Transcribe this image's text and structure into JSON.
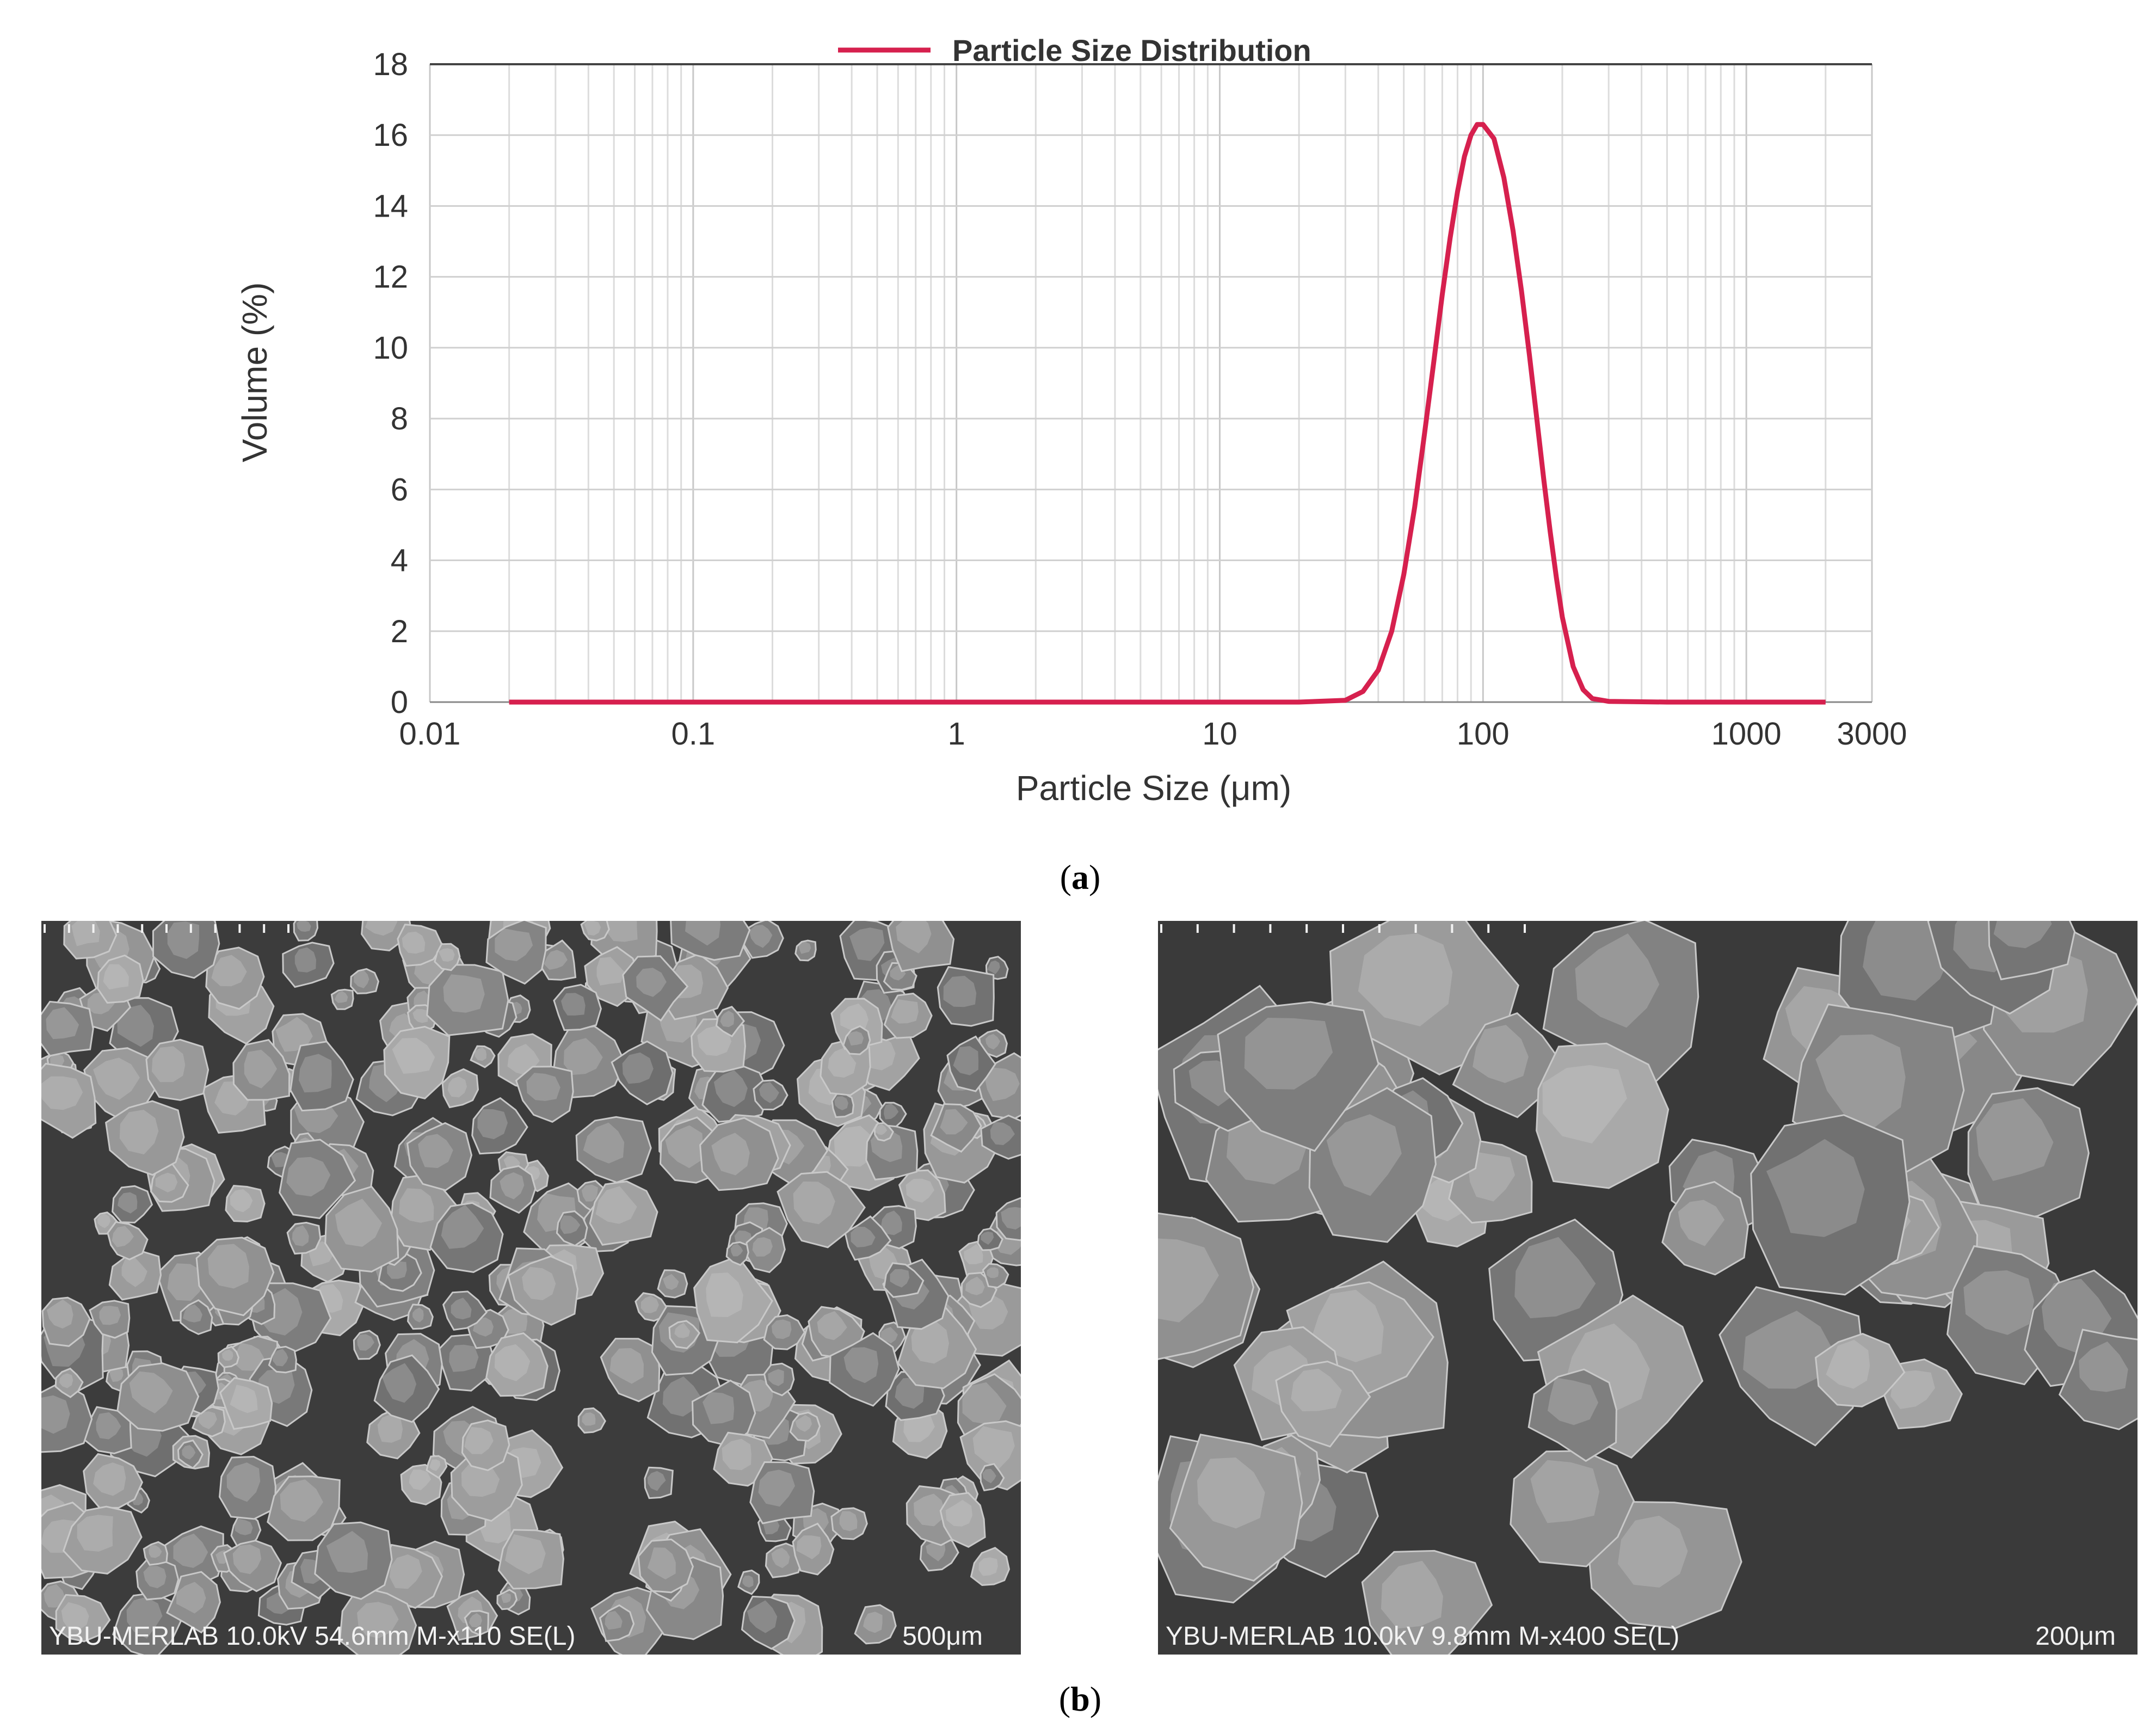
{
  "chart_data": {
    "type": "line",
    "title": "",
    "xlabel": "Particle Size (μm)",
    "ylabel": "Volume (%)",
    "x_scale": "log",
    "xlim": [
      0.01,
      3000
    ],
    "ylim": [
      0,
      18
    ],
    "xticks": [
      0.01,
      0.1,
      1,
      10,
      100,
      1000,
      3000
    ],
    "xtick_labels": [
      "0.01",
      "0.1",
      "1",
      "10",
      "100",
      "1000",
      "3000"
    ],
    "yticks": [
      0,
      2,
      4,
      6,
      8,
      10,
      12,
      14,
      16,
      18
    ],
    "ytick_labels": [
      "0",
      "2",
      "4",
      "6",
      "8",
      "10",
      "12",
      "14",
      "16",
      "18"
    ],
    "grid": true,
    "legend": "top-center",
    "series": [
      {
        "name": "Particle Size Distribution",
        "color": "#d6204e",
        "x": [
          0.02,
          0.05,
          0.1,
          0.5,
          1,
          5,
          10,
          20,
          30,
          35,
          40,
          45,
          50,
          55,
          60,
          65,
          70,
          75,
          80,
          85,
          90,
          95,
          100,
          110,
          120,
          130,
          140,
          150,
          160,
          170,
          180,
          190,
          200,
          220,
          240,
          260,
          300,
          500,
          1000,
          2000
        ],
        "y": [
          0,
          0,
          0,
          0,
          0,
          0,
          0,
          0,
          0.05,
          0.3,
          0.9,
          2.0,
          3.6,
          5.5,
          7.6,
          9.6,
          11.5,
          13.1,
          14.4,
          15.4,
          16.0,
          16.3,
          16.3,
          15.9,
          14.8,
          13.3,
          11.6,
          9.8,
          8.0,
          6.3,
          4.8,
          3.5,
          2.4,
          1.0,
          0.35,
          0.1,
          0.02,
          0,
          0,
          0
        ]
      }
    ]
  },
  "captions": {
    "a": "a",
    "b": "b"
  },
  "sem_left": {
    "info": "YBU-MERLAB 10.0kV 54.6mm M-x110 SE(L)",
    "scale": "500μm",
    "background": "#3c3c3c",
    "particle_color": "#8e8e8e"
  },
  "sem_right": {
    "info": "YBU-MERLAB 10.0kV 9.8mm M-x400 SE(L)",
    "scale": "200μm",
    "background": "#3a3a3a",
    "particle_color": "#8a8a8a"
  }
}
